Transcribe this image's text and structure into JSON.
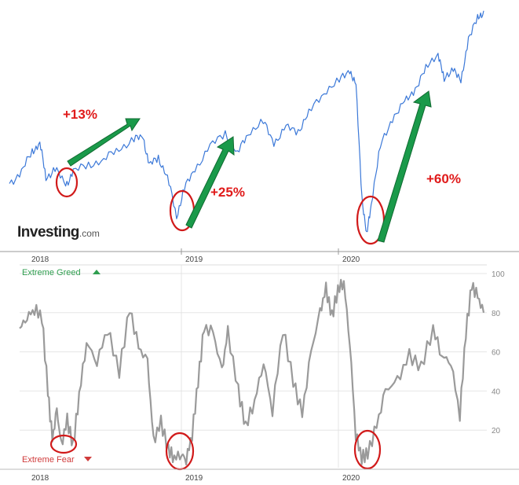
{
  "brand": {
    "name": "Investing",
    "suffix": ".com"
  },
  "colors": {
    "price_line": "#3b78d8",
    "sentiment_line": "#9a9a9a",
    "annotation_circle": "#d11a1a",
    "arrow_fill": "#1a9a4a",
    "greed": "#2f9e4f",
    "fear": "#d03b3b",
    "gain_text": "#e01a1a"
  },
  "chart_data": [
    {
      "type": "line",
      "title": "",
      "xlabel": "",
      "ylabel": "",
      "x_ticks": [
        "2018",
        "2019",
        "2020"
      ],
      "series": [
        {
          "values": [
            [
              2017.88,
              2600
            ],
            [
              2017.96,
              2680
            ],
            [
              2018.03,
              2820
            ],
            [
              2018.08,
              2880
            ],
            [
              2018.12,
              2640
            ],
            [
              2018.18,
              2700
            ],
            [
              2018.25,
              2590
            ],
            [
              2018.3,
              2680
            ],
            [
              2018.4,
              2730
            ],
            [
              2018.5,
              2760
            ],
            [
              2018.6,
              2840
            ],
            [
              2018.7,
              2900
            ],
            [
              2018.76,
              2920
            ],
            [
              2018.8,
              2720
            ],
            [
              2018.86,
              2780
            ],
            [
              2018.92,
              2640
            ],
            [
              2018.98,
              2380
            ],
            [
              2019.03,
              2560
            ],
            [
              2019.1,
              2700
            ],
            [
              2019.2,
              2850
            ],
            [
              2019.3,
              2950
            ],
            [
              2019.38,
              2800
            ],
            [
              2019.45,
              2950
            ],
            [
              2019.55,
              3020
            ],
            [
              2019.62,
              2880
            ],
            [
              2019.7,
              2980
            ],
            [
              2019.78,
              2960
            ],
            [
              2019.85,
              3080
            ],
            [
              2019.95,
              3230
            ],
            [
              2020.05,
              3300
            ],
            [
              2020.12,
              3380
            ],
            [
              2020.16,
              3260
            ],
            [
              2020.2,
              2500
            ],
            [
              2020.23,
              2240
            ],
            [
              2020.26,
              2470
            ],
            [
              2020.32,
              2850
            ],
            [
              2020.4,
              3050
            ],
            [
              2020.48,
              3150
            ],
            [
              2020.55,
              3250
            ],
            [
              2020.62,
              3380
            ],
            [
              2020.7,
              3500
            ],
            [
              2020.74,
              3300
            ],
            [
              2020.8,
              3400
            ],
            [
              2020.85,
              3280
            ],
            [
              2020.9,
              3600
            ],
            [
              2020.96,
              3720
            ],
            [
              2021.0,
              3780
            ]
          ]
        }
      ],
      "annotations": [
        {
          "text": "+13%"
        },
        {
          "text": "+25%"
        },
        {
          "text": "+60%"
        }
      ]
    },
    {
      "type": "line",
      "title": "",
      "xlabel": "",
      "ylabel": "",
      "ylim": [
        0,
        100
      ],
      "y_ticks": [
        20,
        40,
        60,
        80,
        100
      ],
      "x_ticks": [
        "2018",
        "2019",
        "2020"
      ],
      "top_label": "Extreme Greed",
      "bottom_label": "Extreme Fear",
      "series": [
        {
          "values": [
            [
              2017.88,
              72
            ],
            [
              2017.93,
              78
            ],
            [
              2017.98,
              82
            ],
            [
              2018.03,
              78
            ],
            [
              2018.07,
              40
            ],
            [
              2018.1,
              15
            ],
            [
              2018.13,
              30
            ],
            [
              2018.16,
              12
            ],
            [
              2018.2,
              25
            ],
            [
              2018.24,
              12
            ],
            [
              2018.28,
              38
            ],
            [
              2018.33,
              65
            ],
            [
              2018.4,
              55
            ],
            [
              2018.47,
              72
            ],
            [
              2018.55,
              50
            ],
            [
              2018.62,
              82
            ],
            [
              2018.68,
              62
            ],
            [
              2018.74,
              55
            ],
            [
              2018.78,
              14
            ],
            [
              2018.83,
              24
            ],
            [
              2018.88,
              10
            ],
            [
              2018.92,
              6
            ],
            [
              2018.97,
              8
            ],
            [
              2019.0,
              5
            ],
            [
              2019.04,
              18
            ],
            [
              2019.08,
              45
            ],
            [
              2019.12,
              72
            ],
            [
              2019.18,
              70
            ],
            [
              2019.24,
              50
            ],
            [
              2019.28,
              70
            ],
            [
              2019.35,
              40
            ],
            [
              2019.4,
              22
            ],
            [
              2019.46,
              35
            ],
            [
              2019.52,
              55
            ],
            [
              2019.58,
              30
            ],
            [
              2019.65,
              72
            ],
            [
              2019.72,
              45
            ],
            [
              2019.78,
              28
            ],
            [
              2019.84,
              60
            ],
            [
              2019.9,
              80
            ],
            [
              2019.94,
              92
            ],
            [
              2019.98,
              78
            ],
            [
              2020.02,
              92
            ],
            [
              2020.06,
              96
            ],
            [
              2020.1,
              65
            ],
            [
              2020.14,
              18
            ],
            [
              2020.18,
              6
            ],
            [
              2020.22,
              8
            ],
            [
              2020.28,
              22
            ],
            [
              2020.34,
              40
            ],
            [
              2020.42,
              45
            ],
            [
              2020.5,
              58
            ],
            [
              2020.58,
              52
            ],
            [
              2020.66,
              72
            ],
            [
              2020.72,
              58
            ],
            [
              2020.78,
              55
            ],
            [
              2020.84,
              28
            ],
            [
              2020.88,
              70
            ],
            [
              2020.92,
              94
            ],
            [
              2020.96,
              88
            ],
            [
              2021.0,
              80
            ]
          ]
        }
      ]
    }
  ]
}
